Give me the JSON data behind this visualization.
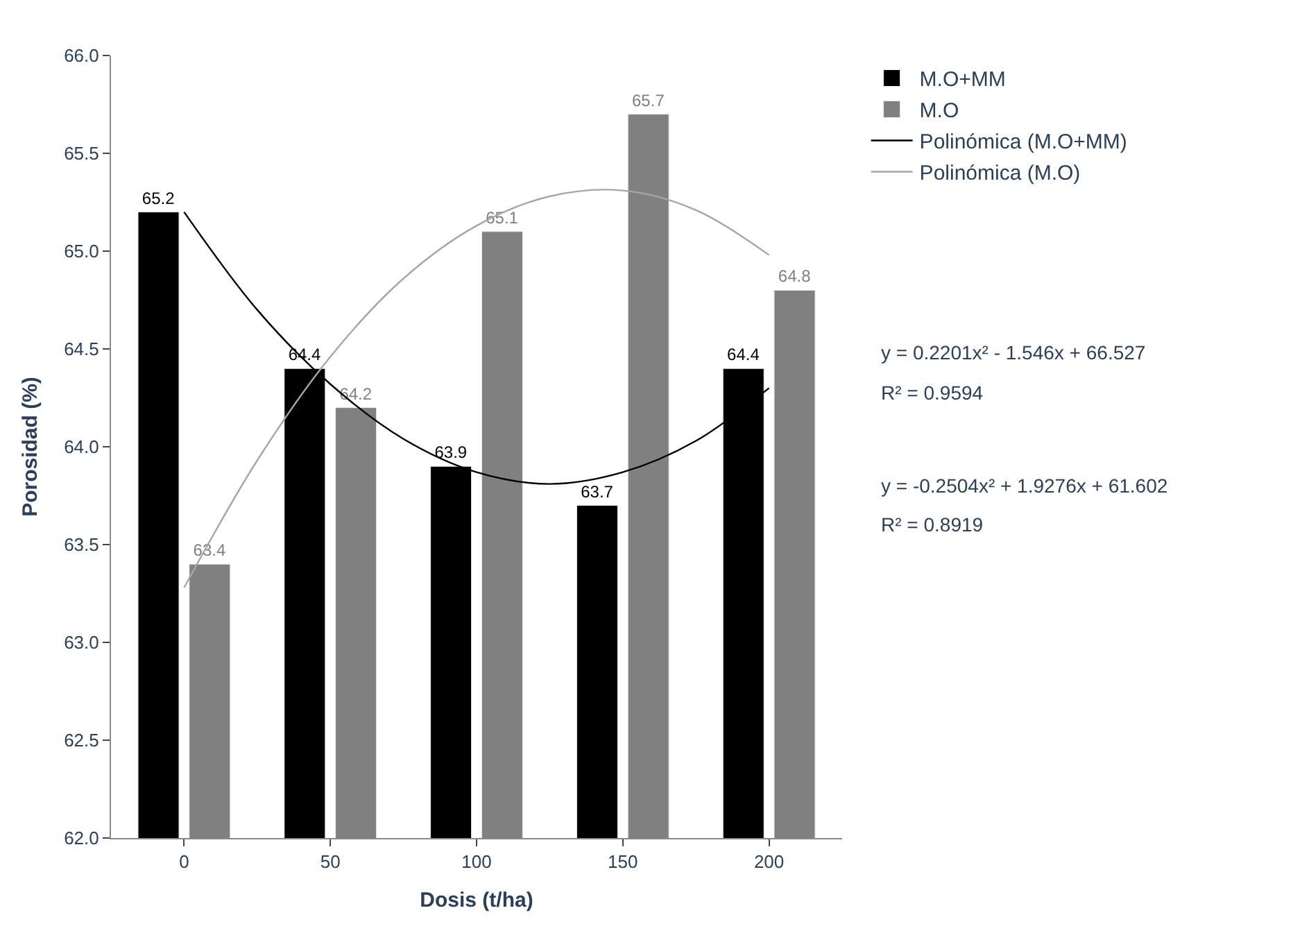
{
  "chart_data": {
    "type": "bar",
    "xlabel": "Dosis (t/ha)",
    "ylabel": "Porosidad (%)",
    "x": [
      0,
      50,
      100,
      150,
      200
    ],
    "xlim": [
      -25,
      225
    ],
    "xticks": [
      0,
      50,
      100,
      150,
      200
    ],
    "ylim": [
      62.0,
      66.0
    ],
    "yticks": [
      {
        "value": 62.0,
        "label": "62.0"
      },
      {
        "value": 62.5,
        "label": "62.5"
      },
      {
        "value": 63.0,
        "label": "63.0"
      },
      {
        "value": 63.5,
        "label": "63.5"
      },
      {
        "value": 64.0,
        "label": "64.0"
      },
      {
        "value": 64.5,
        "label": "64.5"
      },
      {
        "value": 65.0,
        "label": "65.0"
      },
      {
        "value": 65.5,
        "label": "65.5"
      },
      {
        "value": 66.0,
        "label": "66.0"
      }
    ],
    "series": [
      {
        "name": "M.O+MM",
        "color": "#000000",
        "values": [
          65.2,
          64.4,
          63.9,
          63.7,
          64.4
        ],
        "value_labels": [
          "65.2",
          "64.4",
          "63.9",
          "63.7",
          "64.4"
        ]
      },
      {
        "name": "M.O",
        "color": "#808080",
        "values": [
          63.4,
          64.2,
          65.1,
          65.7,
          64.8
        ],
        "value_labels": [
          "63.4",
          "64.2",
          "65.1",
          "65.7",
          "64.8"
        ]
      },
      {
        "name": "Polinómica (M.O+MM)",
        "type": "line",
        "color": "#000000",
        "x": [
          0,
          25,
          50,
          75,
          100,
          125,
          150,
          175,
          200
        ],
        "values": [
          65.2,
          64.7,
          64.32,
          64.04,
          63.87,
          63.81,
          63.87,
          64.03,
          64.3
        ]
      },
      {
        "name": "Polinómica (M.O)",
        "type": "line",
        "color": "#a6a6a6",
        "x": [
          0,
          25,
          50,
          75,
          100,
          125,
          150,
          175,
          200
        ],
        "values": [
          63.28,
          63.93,
          64.46,
          64.86,
          65.13,
          65.28,
          65.31,
          65.21,
          64.98
        ]
      }
    ],
    "legend": "right",
    "marker": "none",
    "annotations": [
      "y = 0.2201x² - 1.546x + 66.527",
      "R² = 0.9594",
      "y = -0.2504x² + 1.9276x + 61.602",
      "R² = 0.8919"
    ]
  }
}
